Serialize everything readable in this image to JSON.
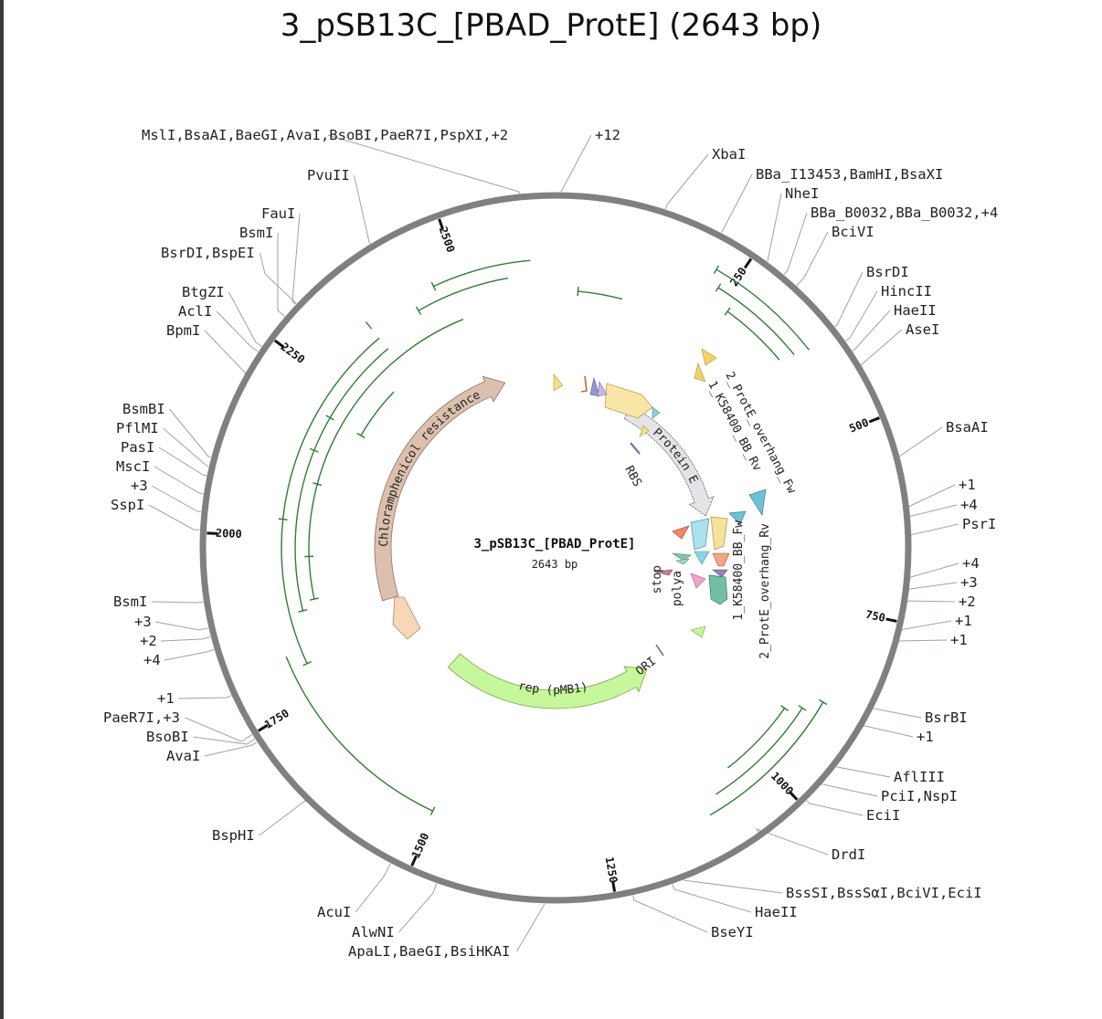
{
  "title": "3_pSB13C_[PBAD_ProtE] (2643 bp)",
  "center": {
    "name": "3_pSB13C_[PBAD_ProtE]",
    "length": "2643 bp"
  },
  "ticks": [
    "250",
    "500",
    "750",
    "1000",
    "1250",
    "1500",
    "1750",
    "2000",
    "2250",
    "2500"
  ],
  "sites": [
    "MslI,BsaAI,BaeGI,AvaI,BsoBI,PaeR7I,PspXI,+2",
    "+12",
    "PvuII",
    "FauI",
    "BsmI",
    "BsrDI,BspEI",
    "BtgZI",
    "AclI",
    "BpmI",
    "BsmBI",
    "PflMI",
    "PasI",
    "MscI",
    "+3",
    "SspI",
    "BsmI",
    "+3",
    "+2",
    "+4",
    "+1",
    "PaeR7I,+3",
    "BsoBI",
    "AvaI",
    "BspHI",
    "AcuI",
    "AlwNI",
    "ApaLI,BaeGI,BsiHKAI",
    "BseYI",
    "HaeII",
    "BssSI,BssSαI,BciVI,EciI",
    "DrdI",
    "EciI",
    "PciI,NspI",
    "AflIII",
    "+1",
    "BsrBI",
    "+1",
    "+1",
    "+2",
    "+3",
    "+4",
    "PsrI",
    "+4",
    "+1",
    "BsaAI",
    "AseI",
    "HaeII",
    "HincII",
    "BsrDI",
    "BciVI",
    "BBa_B0032,BBa_B0032,+4",
    "NheI",
    "BBa_I13453,BamHI,BsaXI",
    "XbaI"
  ],
  "features": [
    {
      "label": "Chloramphenicol resistance",
      "color": "#dcc0ad"
    },
    {
      "label": "Protein E",
      "color": "#e3e3e8"
    },
    {
      "label": "rep (pMB1)",
      "color": "#c6f79a"
    },
    {
      "label": "RBS",
      "color": "#b7a0d8"
    },
    {
      "label": "ORI",
      "color": "#777777"
    },
    {
      "label": "stop",
      "color": "#7ec9a6"
    },
    {
      "label": "polya",
      "color": "#f3a3c9"
    },
    {
      "label": "2_ProtE_overhang_Fw",
      "color": "#f1d36a"
    },
    {
      "label": "1_K58400_BB_Rv",
      "color": "#f1d36a"
    },
    {
      "label": "1_K58400_BB_Fw",
      "color": "#70c8da"
    },
    {
      "label": "2_ProtE_overhang_Rv",
      "color": "#73bfa1"
    }
  ]
}
